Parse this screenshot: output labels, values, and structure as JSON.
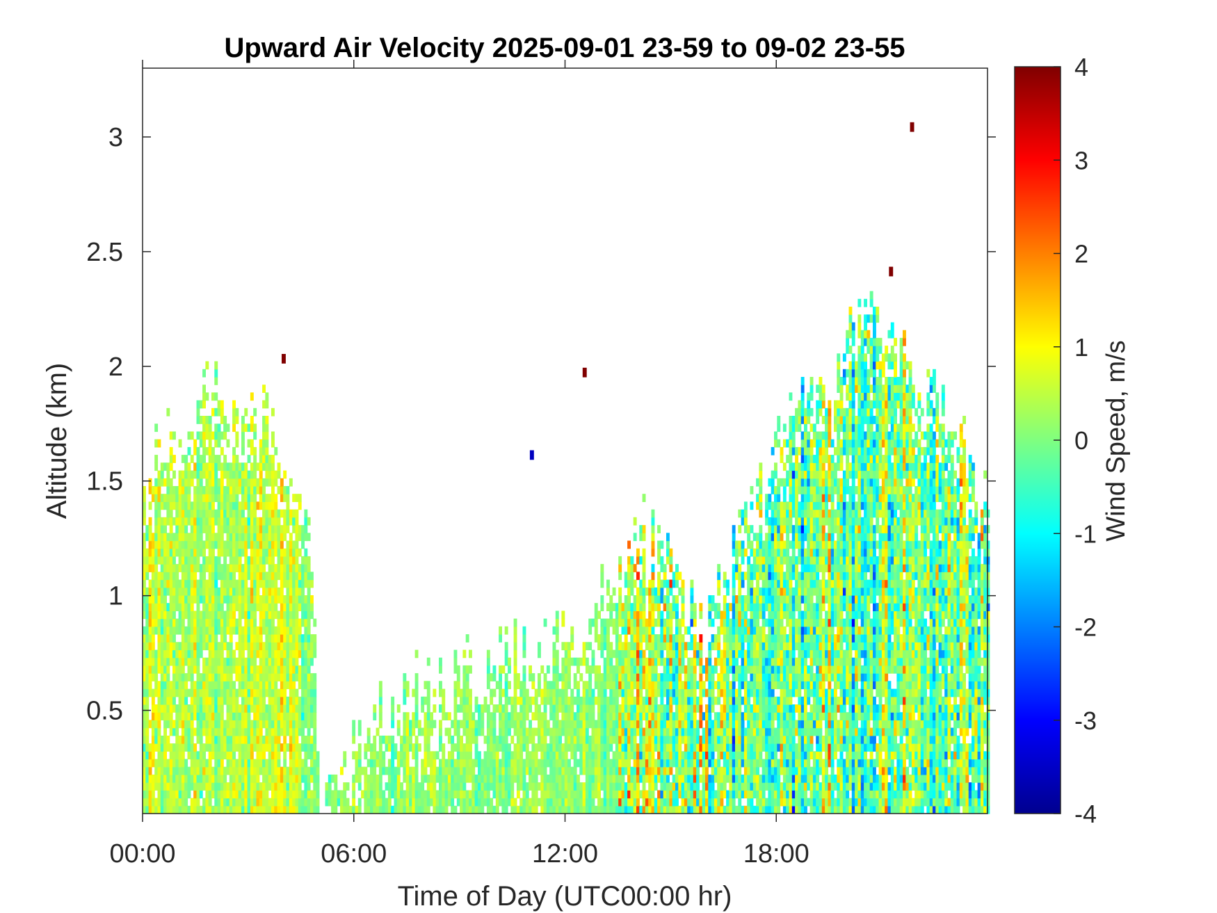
{
  "chart_data": {
    "type": "heatmap",
    "title": "Upward Air Velocity 2025-09-01 23-59 to 09-02 23-55",
    "xlabel": "Time of Day (UTC00:00 hr)",
    "ylabel": "Altitude (km)",
    "colorbar_label": "Wind Speed, m/s",
    "x_unit": "hours UTC",
    "xlim": [
      0,
      24
    ],
    "ylim": [
      0.05,
      3.3
    ],
    "clim": [
      -4,
      4
    ],
    "x_ticks": [
      {
        "value": 0,
        "label": "00:00"
      },
      {
        "value": 6,
        "label": "06:00"
      },
      {
        "value": 12,
        "label": "12:00"
      },
      {
        "value": 18,
        "label": "18:00"
      }
    ],
    "y_ticks": [
      {
        "value": 0.5,
        "label": "0.5"
      },
      {
        "value": 1,
        "label": "1"
      },
      {
        "value": 1.5,
        "label": "1.5"
      },
      {
        "value": 2,
        "label": "2"
      },
      {
        "value": 2.5,
        "label": "2.5"
      },
      {
        "value": 3,
        "label": "3"
      }
    ],
    "colorbar_ticks": [
      {
        "value": 4,
        "label": "4"
      },
      {
        "value": 3,
        "label": "3"
      },
      {
        "value": 2,
        "label": "2"
      },
      {
        "value": 1,
        "label": "1"
      },
      {
        "value": 0,
        "label": "0"
      },
      {
        "value": -1,
        "label": "-1"
      },
      {
        "value": -2,
        "label": "-2"
      },
      {
        "value": -3,
        "label": "-3"
      },
      {
        "value": -4,
        "label": "-4"
      }
    ],
    "colormap": "jet",
    "echo_top_profile": [
      {
        "hour": 0.0,
        "top_km": 1.45
      },
      {
        "hour": 0.5,
        "top_km": 1.6
      },
      {
        "hour": 1.2,
        "top_km": 1.75
      },
      {
        "hour": 2.0,
        "top_km": 1.9
      },
      {
        "hour": 2.8,
        "top_km": 1.7
      },
      {
        "hour": 3.5,
        "top_km": 1.75
      },
      {
        "hour": 4.0,
        "top_km": 1.6
      },
      {
        "hour": 4.8,
        "top_km": 1.2
      },
      {
        "hour": 5.0,
        "top_km": 0.1
      },
      {
        "hour": 5.5,
        "top_km": 0.2
      },
      {
        "hour": 6.5,
        "top_km": 0.5
      },
      {
        "hour": 8.0,
        "top_km": 0.6
      },
      {
        "hour": 9.5,
        "top_km": 0.65
      },
      {
        "hour": 11.0,
        "top_km": 0.75
      },
      {
        "hour": 12.5,
        "top_km": 0.85
      },
      {
        "hour": 13.5,
        "top_km": 1.1
      },
      {
        "hour": 14.2,
        "top_km": 1.25
      },
      {
        "hour": 15.0,
        "top_km": 1.1
      },
      {
        "hour": 16.0,
        "top_km": 0.8
      },
      {
        "hour": 16.8,
        "top_km": 1.2
      },
      {
        "hour": 17.5,
        "top_km": 1.4
      },
      {
        "hour": 18.3,
        "top_km": 1.75
      },
      {
        "hour": 19.5,
        "top_km": 1.9
      },
      {
        "hour": 20.5,
        "top_km": 2.2
      },
      {
        "hour": 21.3,
        "top_km": 2.0
      },
      {
        "hour": 22.0,
        "top_km": 1.95
      },
      {
        "hour": 23.0,
        "top_km": 1.7
      },
      {
        "hour": 24.0,
        "top_km": 1.4
      }
    ],
    "velocity_regimes": [
      {
        "from_hour": 0.0,
        "to_hour": 4.8,
        "mean_ms": 0.4,
        "spread_ms": 0.8
      },
      {
        "from_hour": 4.8,
        "to_hour": 13.5,
        "mean_ms": 0.1,
        "spread_ms": 0.6
      },
      {
        "from_hour": 13.5,
        "to_hour": 16.5,
        "mean_ms": 0.3,
        "spread_ms": 1.6
      },
      {
        "from_hour": 16.5,
        "to_hour": 24.0,
        "mean_ms": -0.2,
        "spread_ms": 1.5
      }
    ],
    "isolated_pixels": [
      {
        "hour": 3.95,
        "km": 2.02,
        "value": 4
      },
      {
        "hour": 12.5,
        "km": 1.96,
        "value": 4
      },
      {
        "hour": 11.0,
        "km": 1.6,
        "value": -3.5
      },
      {
        "hour": 21.8,
        "km": 3.03,
        "value": 4
      },
      {
        "hour": 21.2,
        "km": 2.4,
        "value": 4
      }
    ]
  }
}
